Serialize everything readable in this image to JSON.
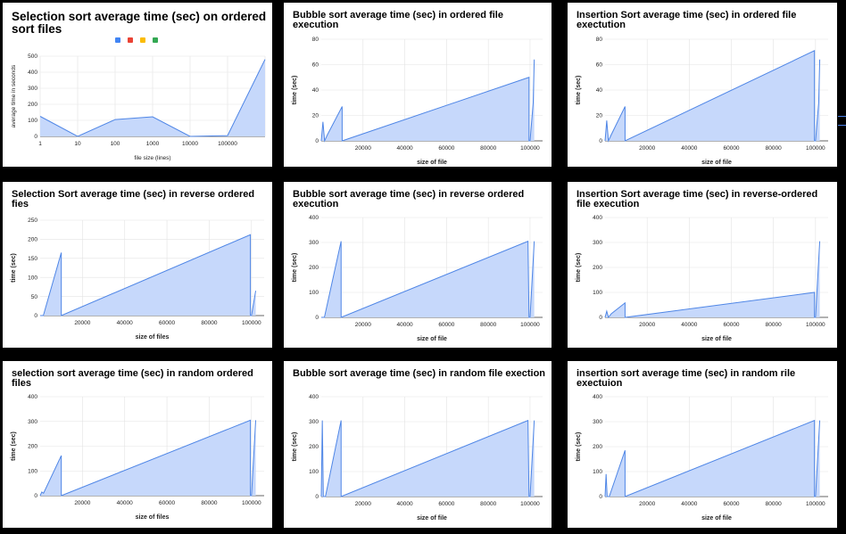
{
  "colors": {
    "series": "#4f86e6",
    "fill": "#c6d8fb",
    "grid": "#e3e3e3",
    "axis": "#333333"
  },
  "legend_colors": [
    "#4285f4",
    "#ea4335",
    "#fbbc04",
    "#34a853"
  ],
  "chart_data": [
    {
      "type": "area",
      "title": "Selection sort average time (sec) on ordered sort files",
      "xlabel": "file size (lines)",
      "ylabel": "average time in seconds",
      "x_scale": "log",
      "categories": [
        "1",
        "10",
        "100",
        "1000",
        "10000",
        "100000",
        ""
      ],
      "y_ticks": [
        0,
        100,
        200,
        300,
        400,
        500
      ],
      "ylim": [
        0,
        500
      ],
      "values": [
        125,
        0,
        105,
        122,
        0,
        5,
        480
      ],
      "legend": "top"
    },
    {
      "type": "area",
      "title": "Bubble sort average time (sec) in ordered file execution",
      "xlabel": "size of file",
      "ylabel": "time (sec)",
      "x_ticks": [
        20000,
        40000,
        60000,
        80000,
        100000
      ],
      "y_ticks": [
        0,
        20,
        40,
        60,
        80
      ],
      "xlim": [
        0,
        106000
      ],
      "ylim": [
        0,
        80
      ],
      "x": [
        0,
        800,
        1600,
        3000,
        10000,
        10000,
        99500,
        99500,
        100000,
        101500,
        102000
      ],
      "values": [
        0,
        15,
        0,
        5,
        27,
        0,
        50,
        0,
        0,
        30,
        64
      ]
    },
    {
      "type": "area",
      "title": "Insertion Sort average time (sec)  in ordered file exectution",
      "xlabel": "size of file",
      "ylabel": "time (sec)",
      "x_ticks": [
        20000,
        40000,
        60000,
        80000,
        100000
      ],
      "y_ticks": [
        0,
        20,
        40,
        60,
        80
      ],
      "xlim": [
        0,
        106000
      ],
      "ylim": [
        0,
        80
      ],
      "x": [
        0,
        800,
        1600,
        3000,
        9500,
        9500,
        99500,
        99500,
        100000,
        101500,
        102000
      ],
      "values": [
        0,
        16,
        0,
        5,
        27,
        0,
        71,
        0,
        0,
        30,
        64
      ]
    },
    {
      "type": "area",
      "title": "Selection Sort average time (sec) in reverse ordered fies",
      "xlabel": "size of files",
      "ylabel": "time (sec)",
      "x_ticks": [
        20000,
        40000,
        60000,
        80000,
        100000
      ],
      "y_ticks": [
        0,
        50,
        100,
        150,
        200,
        250
      ],
      "xlim": [
        0,
        106000
      ],
      "ylim": [
        0,
        250
      ],
      "x": [
        0,
        1500,
        10000,
        10000,
        99500,
        99500,
        100000,
        102000
      ],
      "values": [
        0,
        0,
        165,
        0,
        212,
        0,
        0,
        65
      ]
    },
    {
      "type": "area",
      "title": "Bubble sort average time (sec) in reverse ordered execution",
      "xlabel": "size of file",
      "ylabel": "time (sec)",
      "x_ticks": [
        20000,
        40000,
        60000,
        80000,
        100000
      ],
      "y_ticks": [
        0,
        100,
        200,
        300,
        400
      ],
      "xlim": [
        0,
        106000
      ],
      "ylim": [
        0,
        400
      ],
      "x": [
        0,
        1500,
        9500,
        9500,
        99000,
        99500,
        100000,
        102000
      ],
      "values": [
        0,
        0,
        305,
        0,
        305,
        0,
        0,
        305
      ]
    },
    {
      "type": "area",
      "title": "Insertion Sort average time (sec) in reverse-ordered file execution",
      "xlabel": "size of file",
      "ylabel": "time (sec)",
      "x_ticks": [
        20000,
        40000,
        60000,
        80000,
        100000
      ],
      "y_ticks": [
        0,
        100,
        200,
        300,
        400
      ],
      "xlim": [
        0,
        106000
      ],
      "ylim": [
        0,
        400
      ],
      "x": [
        0,
        800,
        1600,
        3000,
        9500,
        9500,
        99500,
        99500,
        100000,
        102000
      ],
      "values": [
        0,
        25,
        0,
        15,
        58,
        0,
        100,
        0,
        0,
        305
      ]
    },
    {
      "type": "area",
      "title": "selection sort average time (sec) in random ordered files",
      "xlabel": "size of files",
      "ylabel": "time (sec)",
      "x_ticks": [
        20000,
        40000,
        60000,
        80000,
        100000
      ],
      "y_ticks": [
        0,
        100,
        200,
        300,
        400
      ],
      "xlim": [
        0,
        106000
      ],
      "ylim": [
        0,
        400
      ],
      "x": [
        0,
        800,
        1600,
        10000,
        10000,
        99500,
        99500,
        100000,
        102000
      ],
      "values": [
        0,
        15,
        10,
        162,
        0,
        305,
        0,
        0,
        305
      ]
    },
    {
      "type": "area",
      "title": "Bubble sort average time (sec) in random file exection",
      "xlabel": "size of file",
      "ylabel": "time (sec)",
      "x_ticks": [
        20000,
        40000,
        60000,
        80000,
        100000
      ],
      "y_ticks": [
        0,
        100,
        200,
        300,
        400
      ],
      "xlim": [
        0,
        106000
      ],
      "ylim": [
        0,
        400
      ],
      "x": [
        0,
        500,
        1000,
        2000,
        9500,
        9500,
        99000,
        99500,
        100000,
        102000
      ],
      "values": [
        0,
        305,
        0,
        0,
        305,
        0,
        305,
        0,
        0,
        305
      ]
    },
    {
      "type": "area",
      "title": "insertion sort average time (sec) in random rile exectuion",
      "xlabel": "size of file",
      "ylabel": "time (sec)",
      "x_ticks": [
        20000,
        40000,
        60000,
        80000,
        100000
      ],
      "y_ticks": [
        0,
        100,
        200,
        300,
        400
      ],
      "xlim": [
        0,
        106000
      ],
      "ylim": [
        0,
        400
      ],
      "x": [
        0,
        500,
        1000,
        2000,
        9500,
        9500,
        99500,
        99500,
        100000,
        102000
      ],
      "values": [
        0,
        90,
        0,
        0,
        185,
        0,
        305,
        0,
        0,
        305
      ]
    }
  ]
}
